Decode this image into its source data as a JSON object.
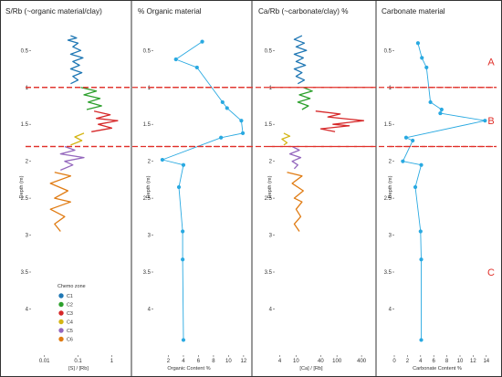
{
  "colors": {
    "C1": "#1f77b4",
    "C2": "#2ca02c",
    "C3": "#d62728",
    "C4": "#d4b514",
    "C5": "#9467bd",
    "C6": "#e07b12",
    "line": "#29a9e1",
    "boundary": "#e0302a",
    "frame": "#555555"
  },
  "zone_boundaries": [
    1.0,
    1.8
  ],
  "zone_labels": [
    {
      "label": "A",
      "depth": 0.65
    },
    {
      "label": "B",
      "depth": 1.45
    },
    {
      "label": "C",
      "depth": 3.5
    }
  ],
  "legend": {
    "title": "Chemo zone",
    "items": [
      "C1",
      "C2",
      "C3",
      "C4",
      "C5",
      "C6"
    ]
  },
  "chart_data": [
    {
      "type": "line",
      "title": "S/Rb (~organic material/clay)",
      "xlabel": "[S] / [Rb]",
      "ylabel": "Depth (m)",
      "xscale": "log",
      "xlim": [
        0.004,
        3
      ],
      "xticks": [
        0.01,
        0.1,
        1
      ],
      "xticklabels": [
        "0.01",
        "0.1",
        "1"
      ],
      "ylim": [
        4.6,
        0.15
      ],
      "yticks": [
        0.5,
        1,
        1.5,
        2,
        2.5,
        3,
        3.5,
        4
      ],
      "yticklabels": [
        "0.5",
        "1",
        "1.5",
        "2",
        "2.5",
        "3",
        "3.5",
        "4"
      ],
      "series": [
        {
          "name": "C1",
          "points": [
            [
              0.06,
              0.3
            ],
            [
              0.09,
              0.33
            ],
            [
              0.05,
              0.36
            ],
            [
              0.1,
              0.4
            ],
            [
              0.07,
              0.45
            ],
            [
              0.12,
              0.5
            ],
            [
              0.06,
              0.55
            ],
            [
              0.14,
              0.6
            ],
            [
              0.07,
              0.65
            ],
            [
              0.11,
              0.7
            ],
            [
              0.06,
              0.75
            ],
            [
              0.13,
              0.8
            ],
            [
              0.07,
              0.85
            ],
            [
              0.1,
              0.9
            ],
            [
              0.06,
              0.95
            ]
          ]
        },
        {
          "name": "C2",
          "points": [
            [
              0.12,
              1.0
            ],
            [
              0.35,
              1.05
            ],
            [
              0.15,
              1.1
            ],
            [
              0.45,
              1.15
            ],
            [
              0.2,
              1.2
            ],
            [
              0.5,
              1.25
            ],
            [
              0.18,
              1.3
            ]
          ]
        },
        {
          "name": "C3",
          "points": [
            [
              0.3,
              1.32
            ],
            [
              0.9,
              1.37
            ],
            [
              0.35,
              1.42
            ],
            [
              1.5,
              1.45
            ],
            [
              0.4,
              1.5
            ],
            [
              1.0,
              1.55
            ],
            [
              0.25,
              1.6
            ]
          ]
        },
        {
          "name": "C4",
          "points": [
            [
              0.15,
              1.62
            ],
            [
              0.08,
              1.67
            ],
            [
              0.13,
              1.72
            ],
            [
              0.06,
              1.78
            ]
          ]
        },
        {
          "name": "C5",
          "points": [
            [
              0.04,
              1.8
            ],
            [
              0.08,
              1.85
            ],
            [
              0.03,
              1.9
            ],
            [
              0.15,
              1.95
            ],
            [
              0.04,
              2.0
            ],
            [
              0.07,
              2.05
            ],
            [
              0.03,
              2.12
            ]
          ]
        },
        {
          "name": "C6",
          "points": [
            [
              0.02,
              2.15
            ],
            [
              0.06,
              2.2
            ],
            [
              0.015,
              2.3
            ],
            [
              0.05,
              2.4
            ],
            [
              0.02,
              2.5
            ],
            [
              0.06,
              2.55
            ],
            [
              0.015,
              2.65
            ],
            [
              0.04,
              2.75
            ],
            [
              0.02,
              2.85
            ],
            [
              0.03,
              2.95
            ]
          ]
        }
      ]
    },
    {
      "type": "line",
      "title": "% Organic material",
      "xlabel": "Organic Content %",
      "ylabel": "Depth (m)",
      "xlim": [
        0,
        12.5
      ],
      "xticks": [
        2,
        4,
        6,
        8,
        10,
        12
      ],
      "xticklabels": [
        "2",
        "4",
        "6",
        "8",
        "10",
        "12"
      ],
      "ylim": [
        4.6,
        0.15
      ],
      "yticks": [
        0.5,
        1,
        1.5,
        2,
        2.5,
        3,
        3.5,
        4
      ],
      "yticklabels": [
        "0.5",
        "1",
        "1.5",
        "2",
        "2.5",
        "3",
        "3.5",
        "4"
      ],
      "series": [
        {
          "points": [
            [
              6.5,
              0.38
            ],
            [
              3.0,
              0.62
            ],
            [
              5.8,
              0.73
            ],
            [
              9.2,
              1.2
            ],
            [
              9.8,
              1.28
            ],
            [
              11.7,
              1.45
            ],
            [
              11.9,
              1.62
            ],
            [
              9.0,
              1.68
            ],
            [
              1.2,
              1.98
            ],
            [
              4.0,
              2.05
            ],
            [
              3.4,
              2.35
            ],
            [
              3.9,
              2.95
            ],
            [
              3.9,
              3.33
            ],
            [
              4.0,
              4.42
            ]
          ]
        }
      ]
    },
    {
      "type": "line",
      "title": "Ca/Rb (~carbonate/clay) %",
      "xlabel": "[Ca] / [Rb]",
      "ylabel": "Depth (m)",
      "xscale": "log",
      "xlim": [
        3,
        700
      ],
      "xticks": [
        4,
        10,
        40,
        100,
        400
      ],
      "xticklabels": [
        "4",
        "10",
        "40",
        "100",
        "400"
      ],
      "ylim": [
        4.6,
        0.15
      ],
      "yticks": [
        0.5,
        1,
        1.5,
        2,
        2.5,
        3,
        3.5,
        4
      ],
      "yticklabels": [
        "0.5",
        "1",
        "1.5",
        "2",
        "2.5",
        "3",
        "3.5",
        "4"
      ],
      "series": [
        {
          "name": "C1",
          "points": [
            [
              14,
              0.3
            ],
            [
              9,
              0.35
            ],
            [
              16,
              0.4
            ],
            [
              10,
              0.45
            ],
            [
              18,
              0.5
            ],
            [
              9,
              0.55
            ],
            [
              15,
              0.6
            ],
            [
              10,
              0.65
            ],
            [
              17,
              0.7
            ],
            [
              9,
              0.75
            ],
            [
              14,
              0.8
            ],
            [
              10,
              0.85
            ],
            [
              16,
              0.9
            ],
            [
              11,
              0.95
            ]
          ]
        },
        {
          "name": "C2",
          "points": [
            [
              15,
              1.0
            ],
            [
              25,
              1.05
            ],
            [
              12,
              1.1
            ],
            [
              22,
              1.15
            ],
            [
              11,
              1.2
            ],
            [
              20,
              1.25
            ],
            [
              14,
              1.3
            ]
          ]
        },
        {
          "name": "C3",
          "points": [
            [
              30,
              1.32
            ],
            [
              120,
              1.36
            ],
            [
              60,
              1.4
            ],
            [
              450,
              1.45
            ],
            [
              80,
              1.5
            ],
            [
              200,
              1.52
            ],
            [
              40,
              1.56
            ],
            [
              90,
              1.6
            ]
          ]
        },
        {
          "name": "C4",
          "points": [
            [
              5,
              1.62
            ],
            [
              7,
              1.66
            ],
            [
              4.5,
              1.7
            ],
            [
              6,
              1.75
            ],
            [
              5,
              1.78
            ]
          ]
        },
        {
          "name": "C5",
          "points": [
            [
              8,
              1.8
            ],
            [
              12,
              1.85
            ],
            [
              7,
              1.9
            ],
            [
              13,
              1.95
            ],
            [
              8,
              2.0
            ],
            [
              11,
              2.05
            ],
            [
              9,
              2.1
            ]
          ]
        },
        {
          "name": "C6",
          "points": [
            [
              6,
              2.15
            ],
            [
              14,
              2.2
            ],
            [
              8,
              2.3
            ],
            [
              15,
              2.4
            ],
            [
              9,
              2.5
            ],
            [
              14,
              2.55
            ],
            [
              10,
              2.65
            ],
            [
              13,
              2.75
            ],
            [
              9,
              2.85
            ],
            [
              12,
              2.95
            ]
          ]
        }
      ]
    },
    {
      "type": "line",
      "title": "Carbonate material",
      "xlabel": "Carbonate Content %",
      "ylabel": "Depth (m)",
      "xlim": [
        0,
        15
      ],
      "xticks": [
        0,
        2,
        4,
        6,
        8,
        10,
        12,
        14
      ],
      "xticklabels": [
        "0",
        "2",
        "4",
        "6",
        "8",
        "10",
        "12",
        "14"
      ],
      "ylim": [
        4.6,
        0.15
      ],
      "yticks": [
        0.5,
        1,
        1.5,
        2,
        2.5,
        3,
        3.5,
        4
      ],
      "yticklabels": [
        "0.5",
        "1",
        "1.5",
        "2",
        "2.5",
        "3",
        "3.5",
        "4"
      ],
      "series": [
        {
          "points": [
            [
              3.6,
              0.4
            ],
            [
              4.2,
              0.6
            ],
            [
              4.9,
              0.73
            ],
            [
              5.5,
              1.2
            ],
            [
              7.2,
              1.3
            ],
            [
              7.0,
              1.35
            ],
            [
              13.8,
              1.45
            ],
            [
              1.8,
              1.68
            ],
            [
              2.8,
              1.72
            ],
            [
              1.3,
              2.0
            ],
            [
              4.1,
              2.05
            ],
            [
              3.2,
              2.35
            ],
            [
              4.0,
              2.95
            ],
            [
              4.1,
              3.33
            ],
            [
              4.1,
              4.42
            ]
          ]
        }
      ]
    }
  ]
}
